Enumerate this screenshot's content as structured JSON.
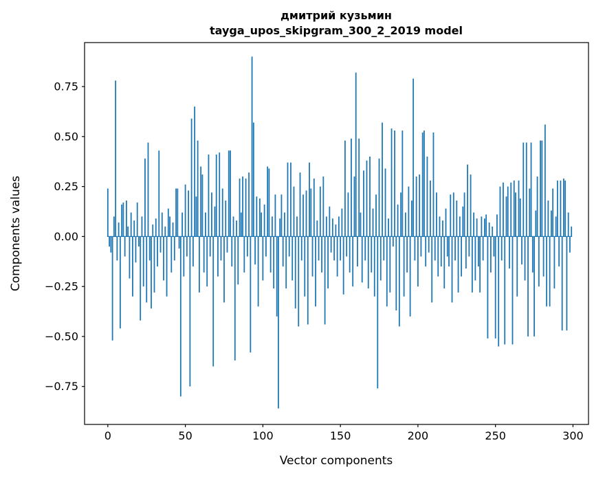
{
  "chart_data": {
    "type": "bar",
    "title_line1": "дмитрий кузьмин",
    "title_line2": "tayga_upos_skipgram_300_2_2019 model",
    "xlabel": "Vector components",
    "ylabel": "Components values",
    "xlim": [
      -15,
      310
    ],
    "ylim": [
      -0.94,
      0.97
    ],
    "xticks": [
      0,
      50,
      100,
      150,
      200,
      250,
      300
    ],
    "yticks": [
      0.75,
      0.5,
      0.25,
      0.0,
      -0.25,
      -0.5,
      -0.75
    ],
    "bar_color": "#1f77b4",
    "grid": false,
    "legend": null,
    "values": [
      0.24,
      -0.05,
      -0.08,
      -0.52,
      0.1,
      0.78,
      -0.12,
      0.07,
      -0.46,
      0.16,
      0.17,
      -0.1,
      0.18,
      0.05,
      -0.21,
      0.12,
      -0.3,
      0.08,
      -0.13,
      0.17,
      -0.05,
      -0.42,
      0.1,
      -0.25,
      0.39,
      -0.33,
      0.47,
      -0.12,
      -0.36,
      0.06,
      -0.28,
      0.09,
      -0.15,
      0.43,
      -0.08,
      0.12,
      -0.22,
      0.05,
      -0.3,
      0.14,
      0.1,
      -0.18,
      0.07,
      -0.12,
      0.24,
      0.24,
      -0.06,
      -0.8,
      0.12,
      -0.2,
      0.26,
      -0.1,
      0.23,
      -0.75,
      0.59,
      -0.15,
      0.65,
      0.2,
      0.48,
      -0.28,
      0.35,
      0.31,
      -0.18,
      0.12,
      -0.25,
      0.41,
      -0.1,
      0.22,
      -0.65,
      0.15,
      0.41,
      -0.2,
      0.42,
      -0.12,
      0.24,
      -0.33,
      0.18,
      -0.08,
      0.43,
      0.43,
      -0.15,
      0.1,
      -0.62,
      0.08,
      -0.24,
      0.29,
      0.12,
      0.3,
      -0.18,
      0.29,
      -0.1,
      0.32,
      -0.58,
      0.9,
      0.57,
      -0.14,
      0.2,
      -0.35,
      0.19,
      0.12,
      -0.22,
      0.16,
      -0.1,
      0.35,
      0.34,
      -0.18,
      0.1,
      -0.26,
      0.21,
      -0.4,
      -0.86,
      0.09,
      0.21,
      -0.15,
      0.12,
      -0.26,
      0.37,
      -0.1,
      0.37,
      -0.22,
      0.25,
      -0.36,
      0.1,
      -0.45,
      0.32,
      -0.12,
      0.21,
      -0.3,
      0.23,
      -0.44,
      0.37,
      0.24,
      -0.2,
      0.29,
      -0.35,
      0.08,
      -0.12,
      0.25,
      -0.18,
      0.3,
      -0.44,
      0.1,
      -0.26,
      0.15,
      -0.08,
      0.09,
      -0.12,
      0.06,
      -0.2,
      0.1,
      -0.12,
      0.14,
      -0.29,
      0.48,
      -0.1,
      0.22,
      -0.18,
      0.49,
      -0.25,
      0.3,
      0.82,
      -0.15,
      0.49,
      0.12,
      -0.23,
      0.33,
      -0.12,
      0.38,
      -0.26,
      0.4,
      -0.18,
      0.14,
      -0.3,
      0.21,
      -0.76,
      0.39,
      -0.22,
      0.57,
      -0.12,
      0.34,
      -0.35,
      0.09,
      -0.28,
      0.54,
      -0.05,
      0.53,
      -0.37,
      0.16,
      -0.45,
      0.22,
      0.53,
      -0.3,
      0.12,
      -0.18,
      0.25,
      -0.4,
      0.18,
      0.79,
      -0.12,
      0.3,
      -0.25,
      0.31,
      -0.1,
      0.52,
      0.53,
      -0.15,
      0.4,
      -0.08,
      0.28,
      -0.33,
      0.52,
      -0.12,
      0.22,
      -0.2,
      0.1,
      -0.15,
      0.08,
      -0.26,
      0.14,
      -0.1,
      -0.15,
      0.21,
      -0.33,
      0.22,
      -0.12,
      0.18,
      -0.28,
      0.1,
      -0.2,
      0.15,
      0.22,
      -0.16,
      0.36,
      -0.1,
      0.31,
      -0.28,
      0.12,
      -0.22,
      0.09,
      -0.15,
      -0.28,
      0.1,
      -0.12,
      0.09,
      0.11,
      -0.51,
      0.07,
      -0.18,
      0.05,
      -0.1,
      -0.51,
      0.11,
      -0.55,
      0.25,
      -0.12,
      0.27,
      -0.54,
      0.2,
      0.25,
      -0.16,
      0.27,
      -0.54,
      0.28,
      0.22,
      -0.3,
      0.28,
      0.19,
      -0.14,
      0.47,
      -0.22,
      0.47,
      -0.5,
      0.24,
      0.47,
      -0.18,
      -0.5,
      0.13,
      0.3,
      -0.25,
      0.48,
      0.48,
      -0.2,
      0.56,
      -0.35,
      0.18,
      -0.35,
      0.13,
      0.24,
      -0.26,
      0.1,
      0.28,
      -0.15,
      0.28,
      -0.47,
      0.29,
      0.28,
      -0.47,
      0.12,
      -0.08,
      0.05
    ]
  }
}
